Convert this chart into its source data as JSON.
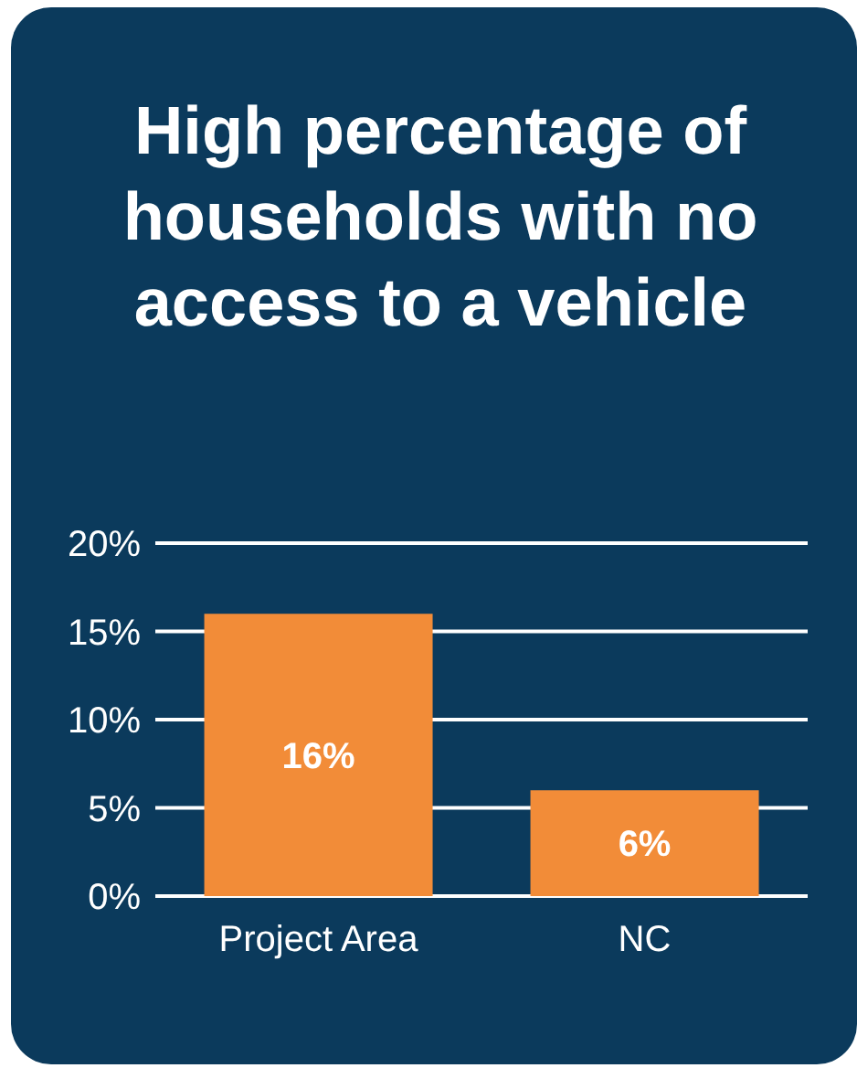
{
  "chart_data": {
    "type": "bar",
    "title": "High percentage of households with no access to a vehicle",
    "categories": [
      "Project Area",
      "NC"
    ],
    "values": [
      16,
      6
    ],
    "color": "#f28c38",
    "value_labels": [
      "16%",
      "6%"
    ],
    "ylim": [
      0,
      20
    ],
    "yticks": [
      {
        "value": 0,
        "label": "0%"
      },
      {
        "value": 5,
        "label": "5%"
      },
      {
        "value": 10,
        "label": "10%"
      },
      {
        "value": 15,
        "label": "15%"
      },
      {
        "value": 20,
        "label": "20%"
      }
    ],
    "grid": "y"
  }
}
